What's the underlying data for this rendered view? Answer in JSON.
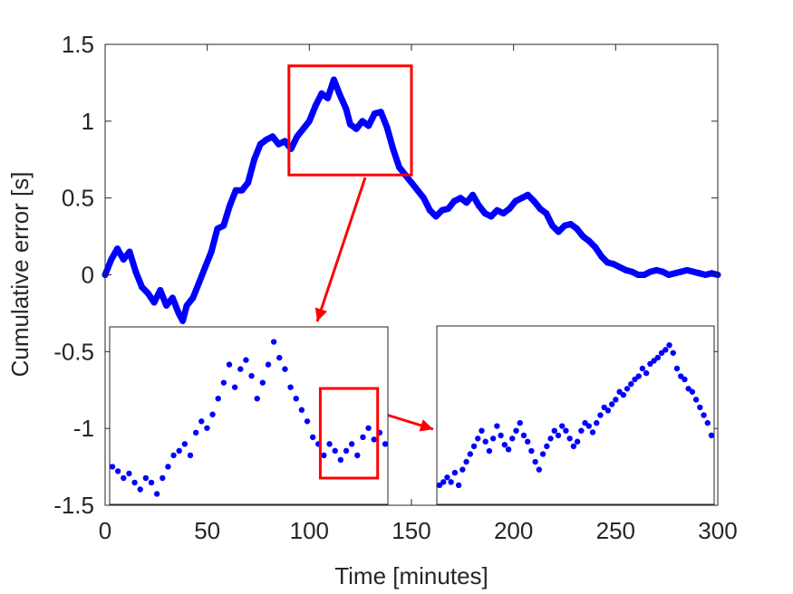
{
  "chart_data": {
    "type": "line",
    "title": "",
    "xlabel": "Time [minutes]",
    "ylabel": "Cumulative error [s]",
    "xlim": [
      0,
      300
    ],
    "ylim": [
      -1.5,
      1.5
    ],
    "x_ticks": [
      0,
      50,
      100,
      150,
      200,
      250,
      300
    ],
    "x_tick_labels": [
      "0",
      "50",
      "100",
      "150",
      "200",
      "250",
      "300"
    ],
    "y_ticks": [
      1.5,
      1,
      0.5,
      0,
      -0.5,
      -1,
      -1.5
    ],
    "y_tick_labels": [
      "1.5",
      "1",
      "0.5",
      "0",
      "-0.5",
      "-1",
      "-1.5"
    ],
    "grid": false,
    "series": [
      {
        "color": "#0000ff",
        "marker": "dot",
        "x": [
          0,
          3,
          6,
          9,
          12,
          15,
          18,
          21,
          24,
          27,
          30,
          33,
          36,
          38,
          40,
          43,
          46,
          49,
          52,
          55,
          58,
          61,
          64,
          67,
          70,
          73,
          76,
          79,
          82,
          85,
          88,
          91,
          94,
          97,
          100,
          103,
          106,
          109,
          112,
          115,
          118,
          120,
          123,
          126,
          129,
          132,
          135,
          138,
          141,
          144,
          147,
          150,
          153,
          156,
          159,
          162,
          165,
          168,
          171,
          174,
          177,
          180,
          183,
          186,
          189,
          192,
          195,
          198,
          201,
          204,
          207,
          210,
          213,
          216,
          219,
          222,
          225,
          228,
          231,
          234,
          237,
          240,
          243,
          246,
          249,
          252,
          255,
          258,
          261,
          264,
          267,
          270,
          273,
          276,
          279,
          282,
          285,
          288,
          291,
          294,
          297,
          300
        ],
        "y": [
          0.0,
          0.1,
          0.17,
          0.1,
          0.15,
          0.02,
          -0.08,
          -0.12,
          -0.18,
          -0.1,
          -0.2,
          -0.15,
          -0.25,
          -0.3,
          -0.2,
          -0.15,
          -0.05,
          0.05,
          0.15,
          0.3,
          0.32,
          0.45,
          0.55,
          0.55,
          0.6,
          0.75,
          0.85,
          0.88,
          0.9,
          0.85,
          0.87,
          0.82,
          0.9,
          0.95,
          1.0,
          1.1,
          1.18,
          1.15,
          1.27,
          1.17,
          1.08,
          0.98,
          0.95,
          1.0,
          0.97,
          1.05,
          1.06,
          0.96,
          0.82,
          0.7,
          0.65,
          0.6,
          0.55,
          0.5,
          0.42,
          0.38,
          0.42,
          0.43,
          0.48,
          0.5,
          0.47,
          0.52,
          0.45,
          0.4,
          0.38,
          0.42,
          0.4,
          0.43,
          0.48,
          0.5,
          0.52,
          0.48,
          0.43,
          0.4,
          0.32,
          0.28,
          0.32,
          0.33,
          0.3,
          0.25,
          0.22,
          0.18,
          0.12,
          0.08,
          0.07,
          0.05,
          0.03,
          0.02,
          0.0,
          -0.0,
          0.02,
          0.03,
          0.02,
          0.0,
          0.01,
          0.02,
          0.03,
          0.02,
          0.01,
          0.0,
          0.01,
          0.0
        ]
      }
    ],
    "zoom_box": {
      "x": [
        90,
        150
      ],
      "y": [
        0.65,
        1.36
      ],
      "color": "#ff0000"
    },
    "inset_1": {
      "y": [
        -0.15,
        -0.17,
        -0.2,
        -0.18,
        -0.22,
        -0.25,
        -0.2,
        -0.22,
        -0.27,
        -0.2,
        -0.15,
        -0.1,
        -0.08,
        -0.05,
        -0.1,
        0.0,
        0.05,
        0.02,
        0.08,
        0.15,
        0.22,
        0.3,
        0.2,
        0.28,
        0.32,
        0.25,
        0.15,
        0.22,
        0.3,
        0.4,
        0.33,
        0.28,
        0.2,
        0.15,
        0.1,
        0.05,
        -0.02,
        -0.05,
        -0.1,
        -0.05,
        -0.08,
        -0.12,
        -0.08,
        -0.05,
        -0.1,
        -0.02,
        0.02,
        -0.03,
        0.0,
        -0.05
      ],
      "ylim": [
        -0.3,
        0.45
      ],
      "zoom_box": {
        "index_range": [
          38,
          47
        ],
        "color": "#ff0000"
      }
    },
    "inset_2": {
      "y": [
        0.1,
        0.12,
        0.15,
        0.12,
        0.18,
        0.1,
        0.2,
        0.25,
        0.3,
        0.35,
        0.4,
        0.45,
        0.38,
        0.32,
        0.4,
        0.48,
        0.42,
        0.36,
        0.33,
        0.4,
        0.45,
        0.5,
        0.42,
        0.38,
        0.32,
        0.25,
        0.2,
        0.3,
        0.35,
        0.4,
        0.45,
        0.42,
        0.48,
        0.45,
        0.4,
        0.35,
        0.38,
        0.45,
        0.5,
        0.48,
        0.44,
        0.5,
        0.55,
        0.6,
        0.58,
        0.62,
        0.65,
        0.7,
        0.68,
        0.72,
        0.75,
        0.78,
        0.8,
        0.85,
        0.82,
        0.88,
        0.9,
        0.92,
        0.95,
        0.97,
        1.0,
        0.95,
        0.85,
        0.8,
        0.78,
        0.72,
        0.7,
        0.65,
        0.6,
        0.55,
        0.5,
        0.42
      ],
      "ylim": [
        0.0,
        1.1
      ]
    },
    "arrow_color": "#ff0000"
  }
}
